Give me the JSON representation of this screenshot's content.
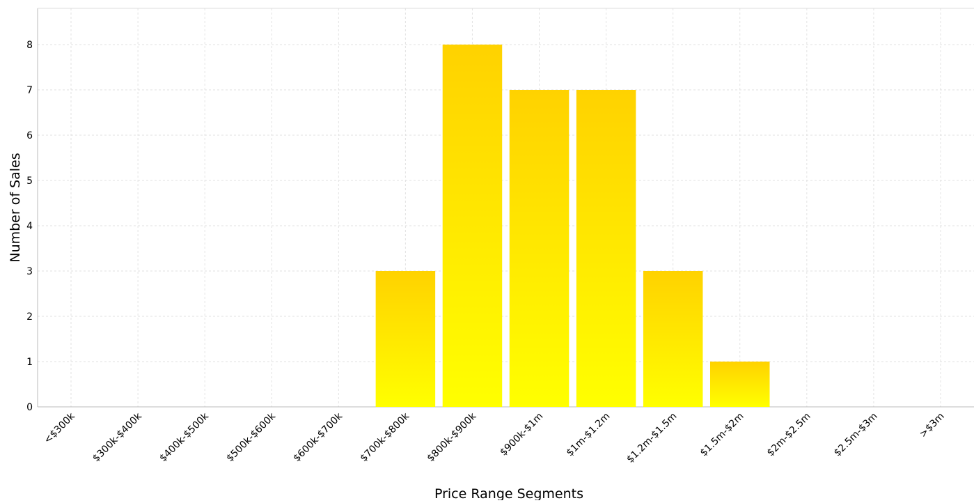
{
  "chart_data": {
    "type": "bar",
    "title": "",
    "xlabel": "Price Range Segments",
    "ylabel": "Number of Sales",
    "categories": [
      "<$300k",
      "$300k-$400k",
      "$400k-$500k",
      "$500k-$600k",
      "$600k-$700k",
      "$700k-$800k",
      "$800k-$900k",
      "$900k-$1m",
      "$1m-$1.2m",
      "$1.2m-$1.5m",
      "$1.5m-$2m",
      "$2m-$2.5m",
      "$2.5m-$3m",
      ">$3m"
    ],
    "values": [
      0,
      0,
      0,
      0,
      0,
      3,
      8,
      7,
      7,
      3,
      1,
      0,
      0,
      0
    ],
    "yticks": [
      0,
      1,
      2,
      3,
      4,
      5,
      6,
      7,
      8
    ],
    "ylim": [
      0,
      8.8
    ],
    "grid": true,
    "legend": "none",
    "colors": {
      "bar_top": "#FFD200",
      "bar_bottom": "#FFFF00",
      "grid": "#E2E2E2",
      "axis": "#BBBBBB"
    }
  }
}
